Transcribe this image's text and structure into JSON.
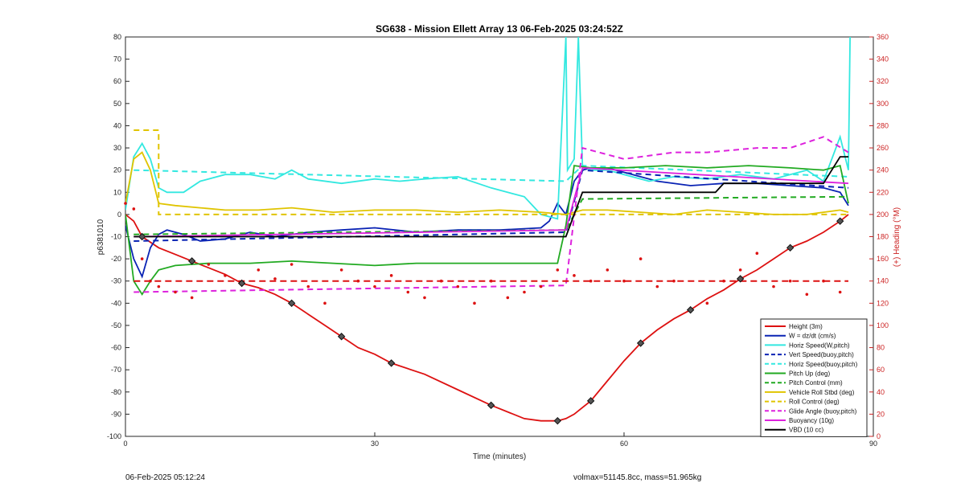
{
  "chart_data": {
    "type": "line",
    "title": "SG638 - Mission Ellett Array 13 06-Feb-2025 03:24:52Z",
    "xlabel": "Time (minutes)",
    "ylabel": "p6381010",
    "ylabel_right": "(+) Heading (°M)",
    "xlim": [
      0,
      90
    ],
    "ylim": [
      -100,
      80
    ],
    "ylim_right": [
      0,
      360
    ],
    "xticks": [
      "0",
      "30",
      "60",
      "90"
    ],
    "yticks": [
      "80",
      "70",
      "60",
      "50",
      "40",
      "30",
      "20",
      "10",
      "0",
      "-10",
      "-20",
      "-30",
      "-40",
      "-50",
      "-60",
      "-70",
      "-80",
      "-90",
      "-100"
    ],
    "yticks_right": [
      "360",
      "340",
      "320",
      "300",
      "280",
      "260",
      "240",
      "220",
      "200",
      "180",
      "160",
      "140",
      "120",
      "100",
      "80",
      "60",
      "40",
      "20",
      "0"
    ],
    "grid": false,
    "legend_position": "bottom-right",
    "series": [
      {
        "name": "Height (3m)",
        "color": "#dd1111",
        "style": "solid",
        "x": [
          0,
          1,
          2,
          4,
          6,
          8,
          10,
          12,
          14,
          16,
          18,
          20,
          22,
          24,
          26,
          28,
          30,
          32,
          36,
          40,
          44,
          48,
          50,
          52,
          53,
          54,
          56,
          58,
          60,
          62,
          64,
          66,
          68,
          70,
          72,
          74,
          76,
          78,
          80,
          82,
          84,
          86,
          87
        ],
        "y": [
          0,
          -3,
          -10,
          -15,
          -18,
          -21,
          -24,
          -27,
          -31,
          -33,
          -36,
          -40,
          -45,
          -50,
          -55,
          -60,
          -63,
          -67,
          -72,
          -79,
          -86,
          -92,
          -93,
          -93,
          -92,
          -90,
          -84,
          -75,
          -66,
          -58,
          -52,
          -47,
          -43,
          -38,
          -34,
          -29,
          -25,
          -20,
          -15,
          -12,
          -8,
          -3,
          0
        ]
      },
      {
        "name": "W = dz/dt (cm/s)",
        "color": "#0a23b4",
        "style": "solid",
        "x": [
          0,
          1,
          2,
          3,
          4,
          5,
          7,
          9,
          12,
          15,
          18,
          22,
          26,
          30,
          35,
          40,
          45,
          50,
          51,
          52,
          53,
          54,
          55,
          56,
          58,
          60,
          64,
          68,
          72,
          76,
          80,
          84,
          86,
          87
        ],
        "y": [
          -5,
          -20,
          -28,
          -15,
          -9,
          -7,
          -9,
          -12,
          -11,
          -8,
          -10,
          -8,
          -7,
          -6,
          -8,
          -7,
          -7,
          -6,
          -3,
          5,
          0,
          15,
          20,
          21,
          21,
          19,
          15,
          13,
          14,
          14,
          13,
          12,
          10,
          4
        ]
      },
      {
        "name": "Horiz Speed(W,pitch)",
        "color": "#33e8e0",
        "style": "solid",
        "x": [
          0,
          1,
          2,
          3,
          4,
          5,
          7,
          9,
          12,
          15,
          18,
          20,
          22,
          26,
          30,
          33,
          36,
          40,
          44,
          48,
          50,
          52,
          53,
          53.2,
          54,
          54.5,
          55,
          56,
          58,
          60,
          63,
          66,
          70,
          74,
          78,
          82,
          84,
          86,
          87,
          87.2
        ],
        "y": [
          2,
          26,
          32,
          25,
          12,
          10,
          10,
          15,
          18,
          18,
          16,
          20,
          16,
          14,
          16,
          15,
          16,
          17,
          12,
          8,
          0,
          -2,
          80,
          20,
          25,
          80,
          22,
          20,
          20,
          18,
          15,
          17,
          16,
          18,
          16,
          20,
          15,
          35,
          20,
          80
        ]
      },
      {
        "name": "Vert Speed(buoy,pitch)",
        "color": "#0a23b4",
        "style": "dashed",
        "x": [
          1,
          53,
          55,
          87
        ],
        "y": [
          -12,
          -8,
          20,
          12
        ]
      },
      {
        "name": "Horiz Speed(buoy,pitch)",
        "color": "#33e8e0",
        "style": "dashed",
        "x": [
          1,
          53,
          55,
          87
        ],
        "y": [
          20,
          15,
          22,
          17
        ]
      },
      {
        "name": "Pitch Up (deg)",
        "color": "#22aa22",
        "style": "solid",
        "x": [
          0,
          1,
          2,
          3,
          4,
          6,
          10,
          15,
          20,
          25,
          30,
          35,
          40,
          45,
          50,
          52,
          53,
          54,
          56,
          60,
          65,
          70,
          75,
          80,
          84,
          86,
          87
        ],
        "y": [
          0,
          -30,
          -36,
          -30,
          -25,
          -23,
          -22,
          -22,
          -21,
          -22,
          -23,
          -22,
          -22,
          -22,
          -22,
          -22,
          -5,
          22,
          21,
          21,
          22,
          21,
          22,
          21,
          20,
          22,
          5
        ]
      },
      {
        "name": "Pitch Control (mm)",
        "color": "#22aa22",
        "style": "dashed",
        "x": [
          1,
          53,
          55,
          87
        ],
        "y": [
          -9,
          -7,
          7,
          8
        ]
      },
      {
        "name": "Vehicle Roll Stbd (deg)",
        "color": "#e0c400",
        "style": "solid",
        "x": [
          0,
          1,
          2,
          3,
          4,
          6,
          9,
          12,
          16,
          20,
          25,
          30,
          35,
          40,
          45,
          50,
          53,
          55,
          58,
          62,
          66,
          70,
          74,
          78,
          82,
          86,
          87
        ],
        "y": [
          5,
          25,
          28,
          20,
          5,
          4,
          3,
          2,
          2,
          3,
          1,
          2,
          2,
          1,
          2,
          1,
          0,
          2,
          2,
          1,
          0,
          2,
          1,
          0,
          0,
          2,
          1
        ]
      },
      {
        "name": "Roll Control (deg)",
        "color": "#e0c400",
        "style": "dashed",
        "x": [
          1,
          4,
          4,
          53,
          53,
          87
        ],
        "y": [
          38,
          38,
          0,
          0,
          0,
          0
        ]
      },
      {
        "name": "Glide Angle (buoy,pitch)",
        "color": "#dd22dd",
        "style": "dashed",
        "x": [
          1,
          53,
          55,
          60,
          66,
          70,
          76,
          80,
          84,
          87
        ],
        "y": [
          -35,
          -32,
          30,
          25,
          28,
          28,
          30,
          30,
          35,
          28
        ]
      },
      {
        "name": "Buoyancy (10g)",
        "color": "#dd22dd",
        "style": "solid",
        "x": [
          1,
          53,
          55,
          87
        ],
        "y": [
          -10,
          -7,
          21,
          14
        ]
      },
      {
        "name": "VBD (10 cc)",
        "color": "#000000",
        "style": "solid",
        "x": [
          1,
          53,
          55,
          71,
          72,
          84,
          85,
          86,
          87
        ],
        "y": [
          -10,
          -10,
          10,
          10,
          14,
          14,
          20,
          26,
          26
        ]
      }
    ],
    "heading_right_axis": {
      "name": "Heading",
      "color": "#dd1111",
      "dots_x": [
        0,
        1,
        2,
        3,
        4,
        6,
        8,
        10,
        12,
        14,
        16,
        18,
        20,
        22,
        24,
        26,
        28,
        30,
        32,
        34,
        36,
        38,
        40,
        42,
        44,
        46,
        48,
        50,
        52,
        54,
        56,
        58,
        60,
        62,
        64,
        66,
        68,
        70,
        72,
        74,
        76,
        78,
        80,
        82,
        84,
        86,
        87
      ],
      "dots_y": [
        210,
        205,
        160,
        140,
        135,
        130,
        125,
        155,
        145,
        138,
        150,
        142,
        155,
        135,
        120,
        150,
        140,
        135,
        145,
        130,
        125,
        140,
        135,
        120,
        140,
        125,
        130,
        135,
        150,
        145,
        140,
        150,
        140,
        160,
        135,
        140,
        115,
        120,
        140,
        150,
        165,
        135,
        140,
        128,
        140,
        130,
        100
      ],
      "target_x": [
        1,
        87
      ],
      "target_y": [
        140,
        140
      ]
    }
  },
  "footer": {
    "left": "06-Feb-2025 05:12:24",
    "right": "volmax=51145.8cc, mass=51.965kg"
  }
}
